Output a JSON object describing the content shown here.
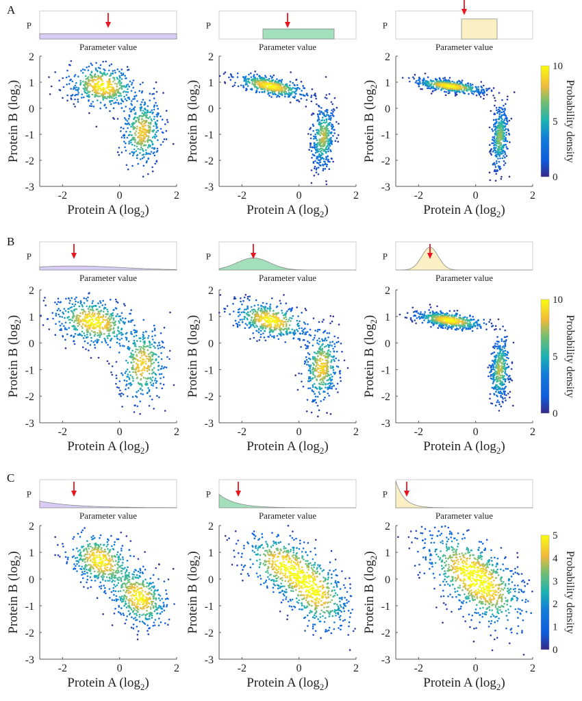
{
  "panel_letters": [
    "A",
    "B",
    "C"
  ],
  "labels": {
    "p": "P",
    "param": "Parameter value",
    "xlabel": "Protein A (log",
    "ylabel": "Protein B (log",
    "sub": "2",
    "suffix": ")",
    "colorbar": "Probability density"
  },
  "colors": {
    "arrow": "#e8141e",
    "priors": [
      "#d9cdf6",
      "#a3dfbb",
      "#fbf0c3"
    ]
  },
  "chart_data": {
    "type": "scatter",
    "xlim": [
      -2.8,
      2
    ],
    "ylim": [
      -3,
      2
    ],
    "xticks": [
      -2,
      0,
      2
    ],
    "yticks": [
      -3,
      -2,
      -1,
      0,
      1,
      2
    ],
    "rows": [
      {
        "prior_type": "uniform",
        "colorbar_ticks": [
          0,
          5,
          10
        ],
        "colorbar_max": 10,
        "panels": [
          {
            "prior": {
              "start": 0.0,
              "end": 1.0,
              "height": 0.2
            },
            "arrow": 0.5,
            "clusters": [
              {
                "mx": -0.6,
                "my": 0.85,
                "sx": 0.6,
                "sy": 0.4,
                "r": -0.2,
                "w": 0.55
              },
              {
                "mx": 0.8,
                "my": -0.9,
                "sx": 0.35,
                "sy": 0.65,
                "r": 0.1,
                "w": 0.45
              }
            ]
          },
          {
            "prior": {
              "start": 0.32,
              "end": 0.84,
              "height": 0.38
            },
            "arrow": 0.5,
            "clusters": [
              {
                "mx": -1.0,
                "my": 0.85,
                "sx": 0.6,
                "sy": 0.22,
                "r": -0.6,
                "w": 0.55
              },
              {
                "mx": 0.85,
                "my": -1.1,
                "sx": 0.2,
                "sy": 0.6,
                "r": 0.2,
                "w": 0.45
              }
            ]
          },
          {
            "prior": {
              "start": 0.48,
              "end": 0.74,
              "height": 0.75
            },
            "arrow": 0.5,
            "clusters": [
              {
                "mx": -0.9,
                "my": 0.85,
                "sx": 0.6,
                "sy": 0.14,
                "r": -0.6,
                "w": 0.55
              },
              {
                "mx": 0.85,
                "my": -1.1,
                "sx": 0.14,
                "sy": 0.6,
                "r": 0.2,
                "w": 0.45
              }
            ]
          }
        ]
      },
      {
        "prior_type": "gaussian",
        "colorbar_ticks": [
          0,
          5,
          10
        ],
        "colorbar_max": 10,
        "panels": [
          {
            "prior": {
              "mean": 0.25,
              "sd": 0.35,
              "height": 0.15
            },
            "arrow": 0.25,
            "clusters": [
              {
                "mx": -0.9,
                "my": 0.8,
                "sx": 0.7,
                "sy": 0.45,
                "r": -0.3,
                "w": 0.55
              },
              {
                "mx": 0.8,
                "my": -0.8,
                "sx": 0.4,
                "sy": 0.7,
                "r": 0.1,
                "w": 0.45
              }
            ]
          },
          {
            "prior": {
              "mean": 0.25,
              "sd": 0.12,
              "height": 0.45
            },
            "arrow": 0.25,
            "clusters": [
              {
                "mx": -1.0,
                "my": 0.85,
                "sx": 0.65,
                "sy": 0.35,
                "r": -0.4,
                "w": 0.55
              },
              {
                "mx": 0.8,
                "my": -0.9,
                "sx": 0.3,
                "sy": 0.65,
                "r": 0.15,
                "w": 0.45
              }
            ]
          },
          {
            "prior": {
              "mean": 0.25,
              "sd": 0.06,
              "height": 0.85
            },
            "arrow": 0.25,
            "clusters": [
              {
                "mx": -0.9,
                "my": 0.85,
                "sx": 0.6,
                "sy": 0.17,
                "r": -0.5,
                "w": 0.55
              },
              {
                "mx": 0.85,
                "my": -1.0,
                "sx": 0.17,
                "sy": 0.6,
                "r": 0.2,
                "w": 0.45
              }
            ]
          }
        ]
      },
      {
        "prior_type": "exponential",
        "colorbar_ticks": [
          0,
          1,
          2,
          3,
          4,
          5
        ],
        "colorbar_max": 5,
        "panels": [
          {
            "prior": {
              "rate": 4,
              "height": 0.25
            },
            "arrow": 0.25,
            "clusters": [
              {
                "mx": -0.7,
                "my": 0.7,
                "sx": 0.55,
                "sy": 0.5,
                "r": -0.3,
                "w": 0.5
              },
              {
                "mx": 0.7,
                "my": -0.7,
                "sx": 0.5,
                "sy": 0.55,
                "r": -0.3,
                "w": 0.5
              }
            ]
          },
          {
            "prior": {
              "rate": 8,
              "height": 0.5
            },
            "arrow": 0.14,
            "clusters": [
              {
                "mx": -0.6,
                "my": 0.55,
                "sx": 0.7,
                "sy": 0.6,
                "r": -0.4,
                "w": 0.5
              },
              {
                "mx": 0.6,
                "my": -0.55,
                "sx": 0.6,
                "sy": 0.7,
                "r": -0.4,
                "w": 0.5
              }
            ]
          },
          {
            "prior": {
              "rate": 16,
              "height": 1.0
            },
            "arrow": 0.08,
            "clusters": [
              {
                "mx": -0.4,
                "my": 0.4,
                "sx": 0.8,
                "sy": 0.75,
                "r": -0.5,
                "w": 0.5
              },
              {
                "mx": 0.4,
                "my": -0.4,
                "sx": 0.75,
                "sy": 0.8,
                "r": -0.5,
                "w": 0.5
              }
            ]
          }
        ]
      }
    ]
  }
}
